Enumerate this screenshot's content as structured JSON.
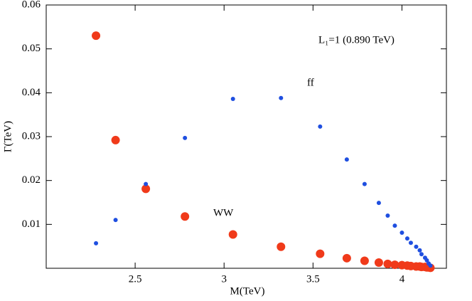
{
  "chart_data": {
    "type": "scatter",
    "x_label": "M(TeV)",
    "y_label": "Γ(TeV)",
    "annotations": [
      "L₁=1 (0.890 TeV)",
      "ff",
      "WW"
    ],
    "x": [
      2.28,
      2.39,
      2.56,
      2.78,
      3.05,
      3.32,
      3.54,
      3.69,
      3.79,
      3.87,
      3.92,
      3.96,
      4.0,
      4.03,
      4.05,
      4.08,
      4.1,
      4.11,
      4.13,
      4.14,
      4.15,
      4.16
    ],
    "series": [
      {
        "name": "ff",
        "color": "#1f4fe0",
        "size": 3,
        "values": [
          0.0057,
          0.011,
          0.0192,
          0.0297,
          0.0386,
          0.0388,
          0.0323,
          0.0248,
          0.0192,
          0.0149,
          0.012,
          0.0097,
          0.0081,
          0.0068,
          0.0058,
          0.0049,
          0.0041,
          0.0032,
          0.0024,
          0.0018,
          0.0011,
          0.0006
        ]
      },
      {
        "name": "WW",
        "color": "#f03a1a",
        "size": 6,
        "values": [
          0.053,
          0.0292,
          0.0181,
          0.0118,
          0.0077,
          0.0049,
          0.0033,
          0.0023,
          0.0017,
          0.0013,
          0.001,
          0.0008,
          0.0007,
          0.0006,
          0.0005,
          0.0004,
          0.0004,
          0.0003,
          0.0003,
          0.0002,
          0.0002,
          0.0001
        ]
      }
    ],
    "xlim": [
      2,
      4.25
    ],
    "ylim": [
      0,
      0.06
    ],
    "xticks": [
      2.5,
      3,
      3.5,
      4
    ],
    "yticks": [
      0.01,
      0.02,
      0.03,
      0.04,
      0.05,
      0.06
    ]
  }
}
